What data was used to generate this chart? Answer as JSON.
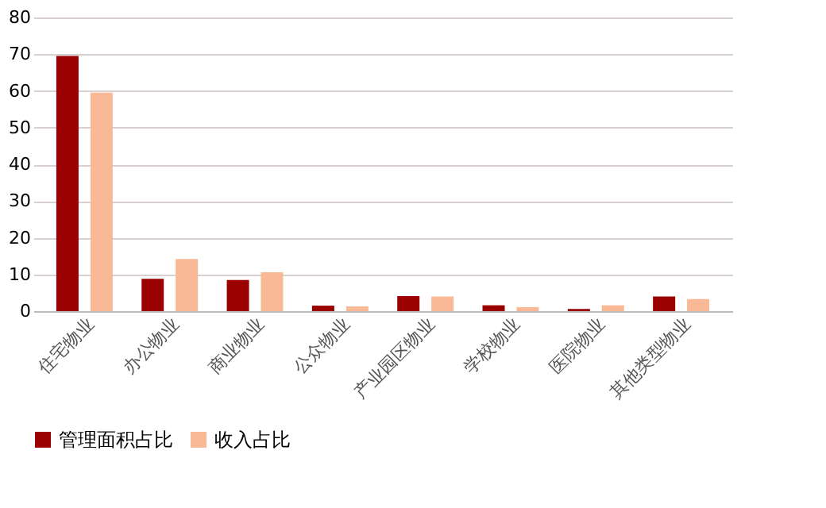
{
  "chart_data": {
    "type": "bar",
    "categories": [
      "住宅物业",
      "办公物业",
      "商业物业",
      "公众物业",
      "产业园区物业",
      "学校物业",
      "医院物业",
      "其他类型物业"
    ],
    "series": [
      {
        "name": "管理面积占比",
        "color": "#9b0000",
        "values": [
          69.5,
          8.8,
          8.5,
          1.5,
          4.1,
          1.6,
          0.6,
          4.0
        ]
      },
      {
        "name": "收入占比",
        "color": "#f9b896",
        "values": [
          59.5,
          14.2,
          10.6,
          1.3,
          4.0,
          1.1,
          1.6,
          3.3
        ]
      }
    ],
    "ylim": [
      0,
      80
    ],
    "yticks": [
      0,
      10,
      20,
      30,
      40,
      50,
      60,
      70,
      80
    ],
    "grid": "y",
    "legend": "bottom"
  }
}
